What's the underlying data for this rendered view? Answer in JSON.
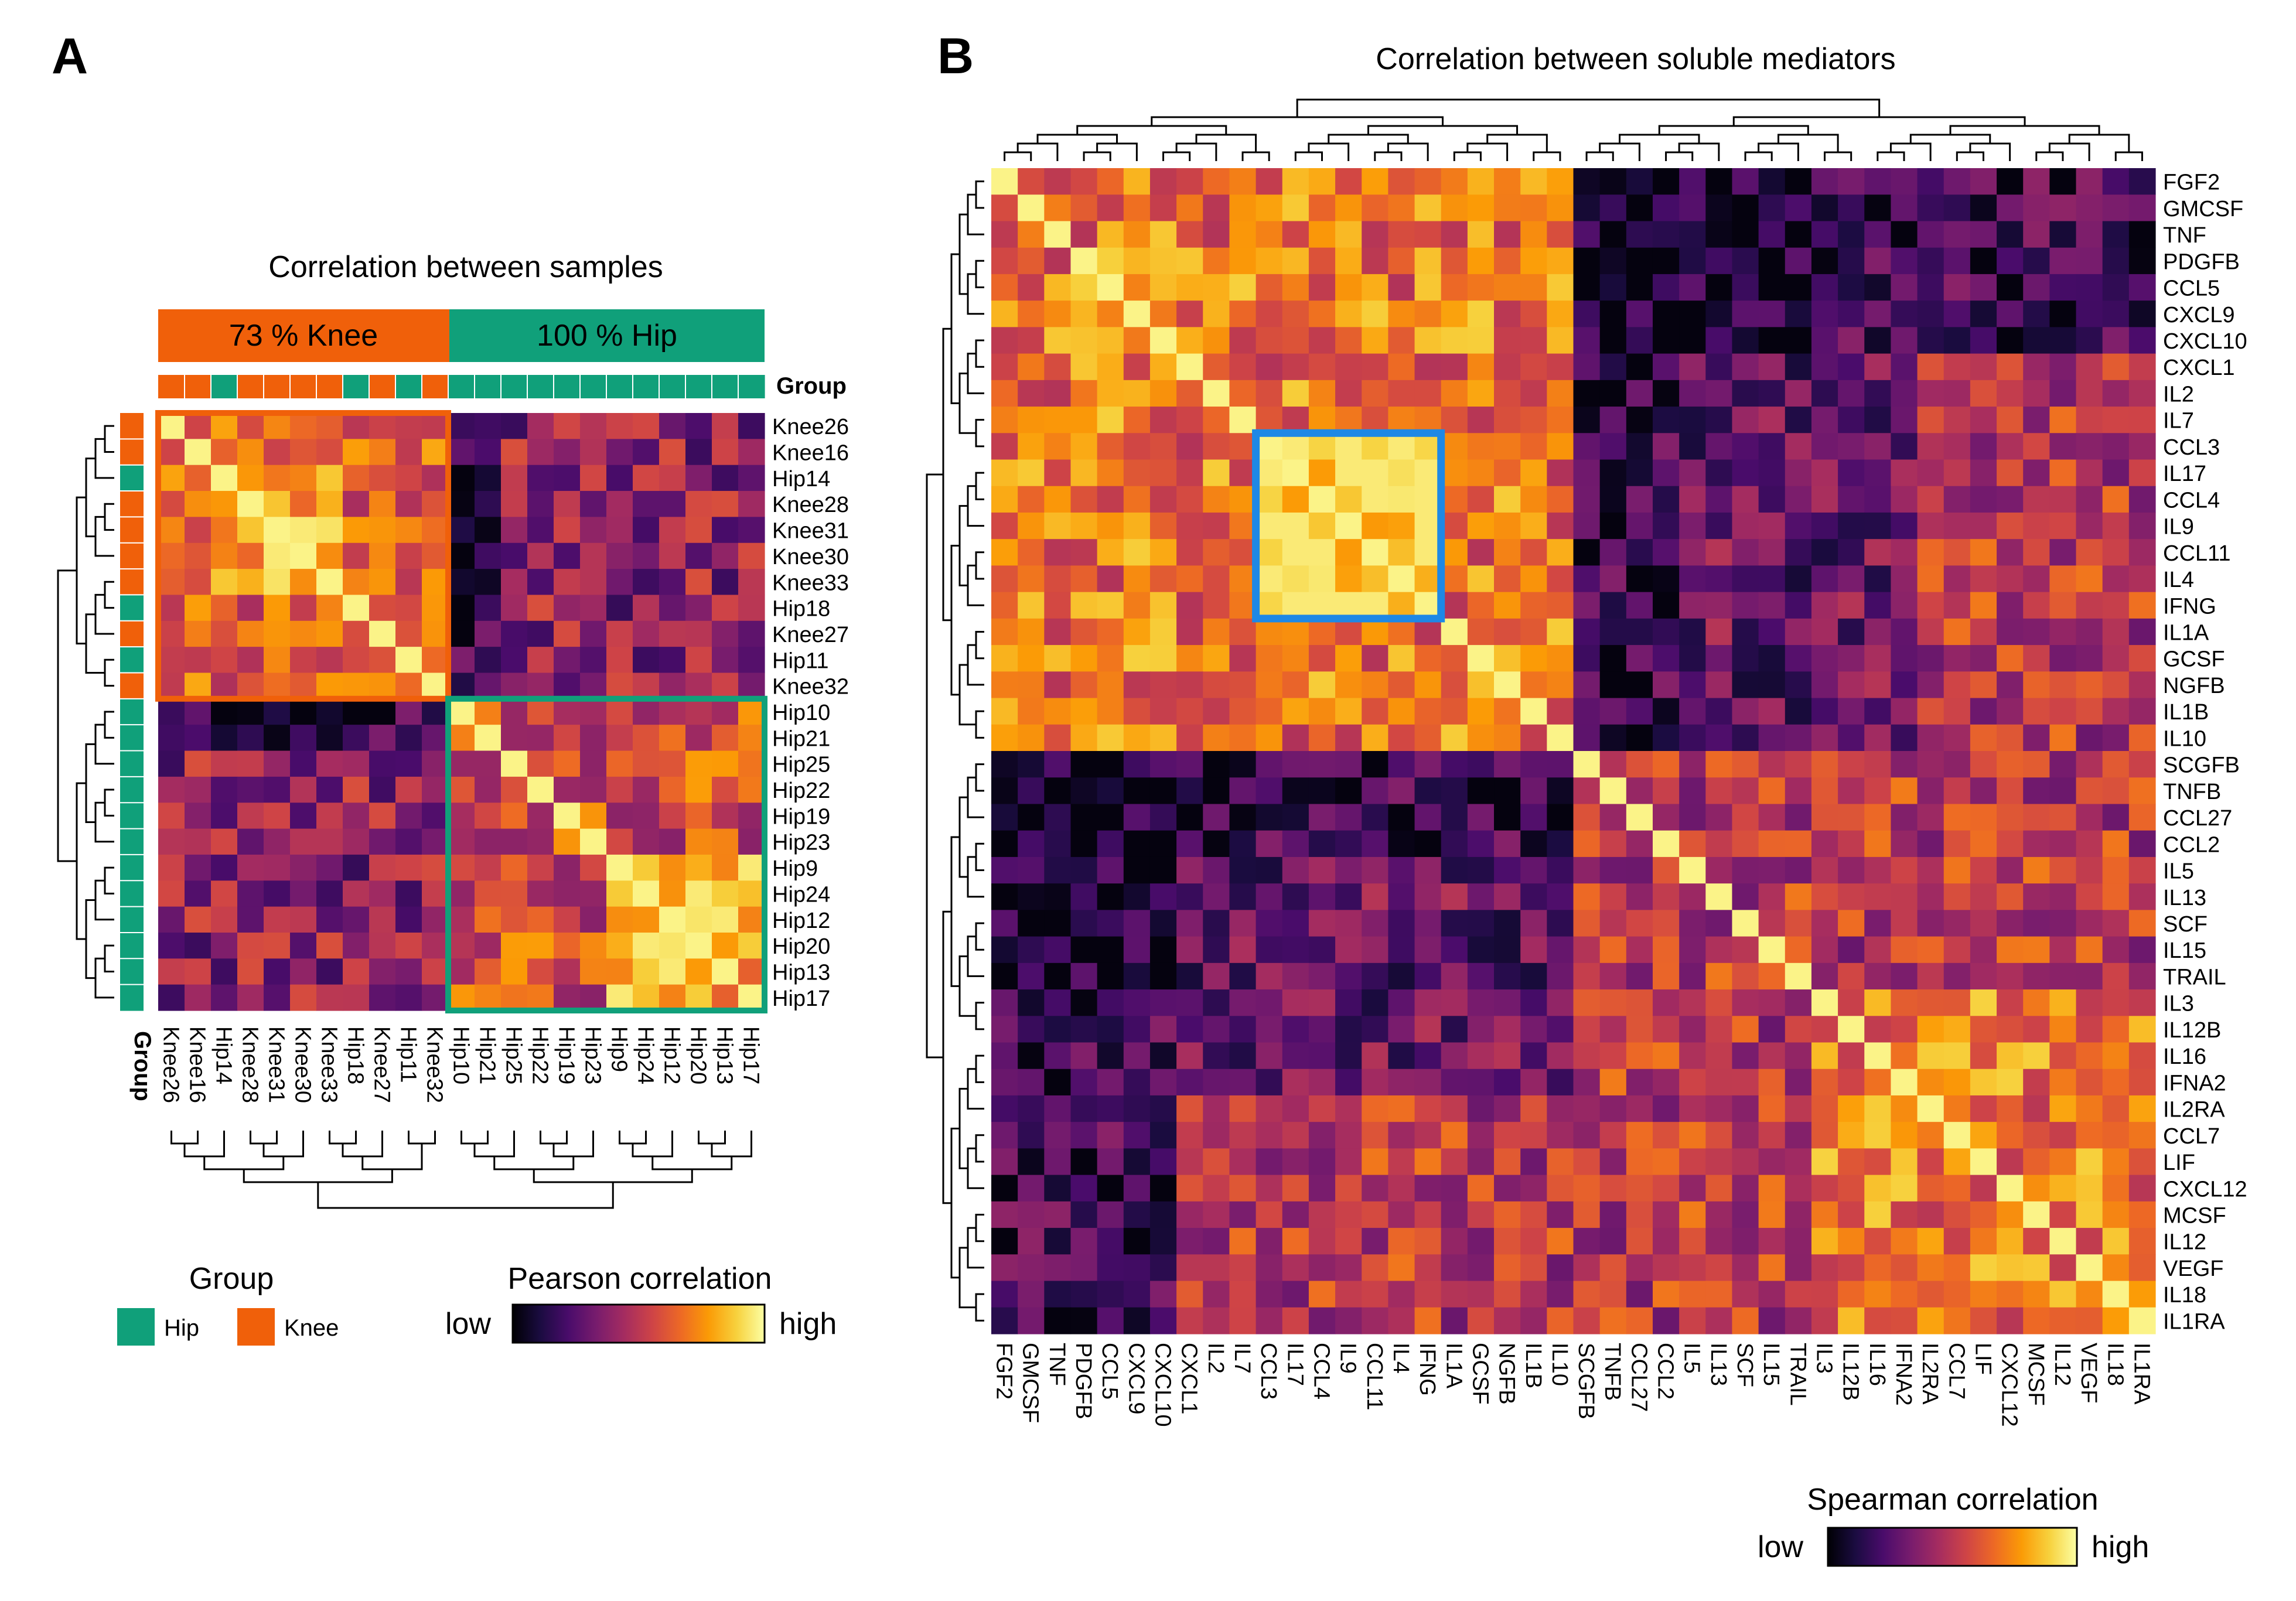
{
  "panel_a": {
    "letter": "A",
    "title": "Correlation between samples",
    "banner_knee": "73 % Knee",
    "banner_hip": "100 % Hip",
    "group_label": "Group",
    "group_axis_label": "Group",
    "legend_group_title": "Group",
    "legend_hip": "Hip",
    "legend_knee": "Knee",
    "colorbar_title": "Pearson correlation",
    "colorbar_low": "low",
    "colorbar_high": "high"
  },
  "panel_b": {
    "letter": "B",
    "title": "Correlation between soluble mediators",
    "colorbar_title": "Spearman correlation",
    "colorbar_low": "low",
    "colorbar_high": "high"
  },
  "colors": {
    "hip": "#10a07a",
    "knee": "#f0600a",
    "blue_box": "#1e88e5",
    "colormap": [
      "#000004",
      "#1b0c41",
      "#4a0c6b",
      "#781c6d",
      "#a52c60",
      "#cf4446",
      "#ed6925",
      "#fb9b06",
      "#f7d13d",
      "#fcffa4"
    ]
  },
  "chart_data": [
    {
      "type": "heatmap",
      "title": "Correlation between samples",
      "metric": "Pearson correlation",
      "labels": [
        "Knee26",
        "Knee16",
        "Hip14",
        "Knee28",
        "Knee31",
        "Knee30",
        "Knee33",
        "Hip18",
        "Knee27",
        "Hip11",
        "Knee32",
        "Hip10",
        "Hip21",
        "Hip25",
        "Hip22",
        "Hip19",
        "Hip23",
        "Hip9",
        "Hip24",
        "Hip12",
        "Hip20",
        "Hip13",
        "Hip17"
      ],
      "groups": [
        "Knee",
        "Knee",
        "Hip",
        "Knee",
        "Knee",
        "Knee",
        "Knee",
        "Hip",
        "Knee",
        "Hip",
        "Knee",
        "Hip",
        "Hip",
        "Hip",
        "Hip",
        "Hip",
        "Hip",
        "Hip",
        "Hip",
        "Hip",
        "Hip",
        "Hip",
        "Hip"
      ],
      "clusters": [
        {
          "name": "73 % Knee",
          "size": 11
        },
        {
          "name": "100 % Hip",
          "size": 12
        }
      ],
      "highlight_blocks": [
        {
          "start": 0,
          "end": 10,
          "color": "knee"
        },
        {
          "start": 11,
          "end": 22,
          "color": "hip"
        }
      ],
      "seed": 17
    },
    {
      "type": "heatmap",
      "title": "Correlation between soluble mediators",
      "metric": "Spearman correlation",
      "labels": [
        "FGF2",
        "GMCSF",
        "TNF",
        "PDGFB",
        "CCL5",
        "CXCL9",
        "CXCL10",
        "CXCL1",
        "IL2",
        "IL7",
        "CCL3",
        "IL17",
        "CCL4",
        "IL9",
        "CCL11",
        "IL4",
        "IFNG",
        "IL1A",
        "GCSF",
        "NGFB",
        "IL1B",
        "IL10",
        "SCGFB",
        "TNFB",
        "CCL27",
        "CCL2",
        "IL5",
        "IL13",
        "SCF",
        "IL15",
        "TRAIL",
        "IL3",
        "IL12B",
        "IL16",
        "IFNA2",
        "IL2RA",
        "CCL7",
        "LIF",
        "CXCL12",
        "MCSF",
        "IL12",
        "VEGF",
        "IL18",
        "IL1RA"
      ],
      "clusters": [
        {
          "size": 22
        },
        {
          "size": 22
        }
      ],
      "highlight_block": {
        "start": 10,
        "end": 16,
        "color": "blue_box"
      },
      "seed": 42
    }
  ]
}
